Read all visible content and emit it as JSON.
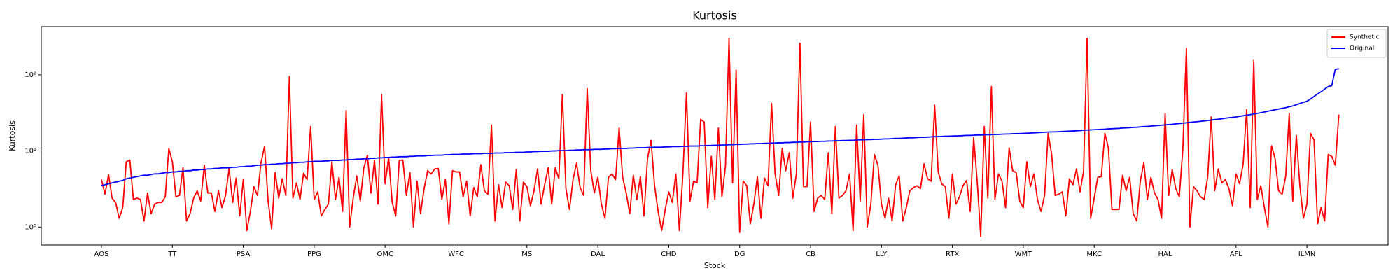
{
  "chart_data": {
    "type": "line",
    "title": "Kurtosis",
    "x_label": "Stock",
    "y_label": "Kurtosis",
    "log_scale_y": true,
    "legend": "upper right",
    "ylim": [
      0.58,
      430
    ],
    "yticks": [
      {
        "value": 1,
        "label": "10⁰"
      },
      {
        "value": 10,
        "label": "10¹"
      },
      {
        "value": 100,
        "label": "10²"
      }
    ],
    "categories": [
      "AOS",
      null,
      null,
      null,
      null,
      null,
      null,
      null,
      null,
      null,
      null,
      null,
      null,
      null,
      null,
      null,
      null,
      null,
      null,
      null,
      "TT",
      null,
      null,
      null,
      null,
      null,
      null,
      null,
      null,
      null,
      null,
      null,
      null,
      null,
      null,
      null,
      null,
      null,
      null,
      null,
      "PSA",
      null,
      null,
      null,
      null,
      null,
      null,
      null,
      null,
      null,
      null,
      null,
      null,
      null,
      null,
      null,
      null,
      null,
      null,
      null,
      "PPG",
      null,
      null,
      null,
      null,
      null,
      null,
      null,
      null,
      null,
      null,
      null,
      null,
      null,
      null,
      null,
      null,
      null,
      null,
      null,
      "OMC",
      null,
      null,
      null,
      null,
      null,
      null,
      null,
      null,
      null,
      null,
      null,
      null,
      null,
      null,
      null,
      null,
      null,
      null,
      null,
      "WFC",
      null,
      null,
      null,
      null,
      null,
      null,
      null,
      null,
      null,
      null,
      null,
      null,
      null,
      null,
      null,
      null,
      null,
      null,
      null,
      "MS",
      null,
      null,
      null,
      null,
      null,
      null,
      null,
      null,
      null,
      null,
      null,
      null,
      null,
      null,
      null,
      null,
      null,
      null,
      null,
      "DAL",
      null,
      null,
      null,
      null,
      null,
      null,
      null,
      null,
      null,
      null,
      null,
      null,
      null,
      null,
      null,
      null,
      null,
      null,
      null,
      "CHD",
      null,
      null,
      null,
      null,
      null,
      null,
      null,
      null,
      null,
      null,
      null,
      null,
      null,
      null,
      null,
      null,
      null,
      null,
      null,
      "DG",
      null,
      null,
      null,
      null,
      null,
      null,
      null,
      null,
      null,
      null,
      null,
      null,
      null,
      null,
      null,
      null,
      null,
      null,
      null,
      "CB",
      null,
      null,
      null,
      null,
      null,
      null,
      null,
      null,
      null,
      null,
      null,
      null,
      null,
      null,
      null,
      null,
      null,
      null,
      null,
      "LLY",
      null,
      null,
      null,
      null,
      null,
      null,
      null,
      null,
      null,
      null,
      null,
      null,
      null,
      null,
      null,
      null,
      null,
      null,
      null,
      "RTX",
      null,
      null,
      null,
      null,
      null,
      null,
      null,
      null,
      null,
      null,
      null,
      null,
      null,
      null,
      null,
      null,
      null,
      null,
      null,
      "WMT",
      null,
      null,
      null,
      null,
      null,
      null,
      null,
      null,
      null,
      null,
      null,
      null,
      null,
      null,
      null,
      null,
      null,
      null,
      null,
      "MKC",
      null,
      null,
      null,
      null,
      null,
      null,
      null,
      null,
      null,
      null,
      null,
      null,
      null,
      null,
      null,
      null,
      null,
      null,
      null,
      "HAL",
      null,
      null,
      null,
      null,
      null,
      null,
      null,
      null,
      null,
      null,
      null,
      null,
      null,
      null,
      null,
      null,
      null,
      null,
      null,
      "AFL",
      null,
      null,
      null,
      null,
      null,
      null,
      null,
      null,
      null,
      null,
      null,
      null,
      null,
      null,
      null,
      null,
      null,
      null,
      null,
      "ILMN",
      null,
      null,
      null,
      null,
      null,
      null,
      null,
      null,
      null
    ],
    "series": [
      {
        "name": "Synthetic",
        "color": "#ff0000",
        "values": [
          4.2,
          2.7,
          4.9,
          2.4,
          2.1,
          1.3,
          1.8,
          7.2,
          7.6,
          2.3,
          2.4,
          2.3,
          1.2,
          2.8,
          1.5,
          2.0,
          2.1,
          2.1,
          2.5,
          10.8,
          7.2,
          2.5,
          2.6,
          6.0,
          1.2,
          1.5,
          2.4,
          3.0,
          2.2,
          6.5,
          2.8,
          2.8,
          1.6,
          3.0,
          1.8,
          2.6,
          5.9,
          2.1,
          4.4,
          1.4,
          4.2,
          0.9,
          1.6,
          3.4,
          2.6,
          7.0,
          11.5,
          2.2,
          0.95,
          5.2,
          2.4,
          4.3,
          2.6,
          95,
          2.4,
          3.8,
          2.3,
          5.1,
          4.2,
          21,
          2.3,
          2.9,
          1.4,
          1.7,
          2.0,
          7.2,
          2.3,
          4.5,
          1.6,
          34,
          1.0,
          2.4,
          4.7,
          2.2,
          6.0,
          8.8,
          2.8,
          7.5,
          2.0,
          55,
          3.7,
          8.2,
          2.1,
          1.4,
          7.5,
          7.6,
          2.6,
          5.2,
          1.0,
          4.0,
          1.5,
          3.2,
          5.5,
          5.0,
          5.8,
          5.9,
          2.3,
          4.2,
          1.1,
          5.5,
          5.3,
          5.3,
          2.5,
          4.0,
          1.4,
          3.3,
          2.5,
          6.6,
          3.0,
          2.7,
          22,
          1.2,
          3.6,
          1.8,
          3.9,
          3.5,
          1.7,
          5.7,
          1.2,
          3.9,
          3.4,
          1.9,
          3.0,
          5.8,
          2.0,
          3.6,
          6.0,
          2.0,
          6.0,
          4.3,
          55,
          3.2,
          1.7,
          4.2,
          6.9,
          3.3,
          2.6,
          66,
          5.6,
          2.8,
          4.5,
          2.0,
          1.3,
          4.5,
          5.0,
          4.2,
          20,
          4.5,
          2.8,
          1.5,
          4.8,
          2.3,
          4.6,
          1.4,
          7.9,
          13.8,
          3.5,
          1.6,
          0.9,
          1.7,
          2.9,
          2.1,
          5.0,
          0.9,
          5.1,
          58,
          2.2,
          4.0,
          3.8,
          26,
          24,
          1.8,
          8.5,
          2.3,
          20,
          2.5,
          6.3,
          300,
          3.8,
          115,
          0.85,
          4.0,
          3.5,
          1.1,
          2.0,
          4.6,
          1.3,
          4.4,
          3.5,
          42,
          5.0,
          2.6,
          10.8,
          5.5,
          9.5,
          2.4,
          5.0,
          260,
          3.4,
          3.4,
          24,
          1.6,
          2.4,
          2.6,
          2.3,
          9.5,
          1.5,
          21,
          2.4,
          2.6,
          3.0,
          5.0,
          0.9,
          22,
          2.2,
          30,
          1.0,
          2.0,
          9.0,
          6.5,
          2.0,
          1.3,
          2.4,
          1.2,
          3.6,
          4.7,
          1.2,
          1.8,
          3.0,
          3.3,
          3.5,
          3.2,
          6.8,
          4.3,
          4.0,
          40,
          5.3,
          3.7,
          3.4,
          1.3,
          5.0,
          2.0,
          2.5,
          3.5,
          4.1,
          1.6,
          15,
          4.0,
          0.75,
          21,
          2.4,
          70,
          2.3,
          5.0,
          4.0,
          1.8,
          11,
          5.5,
          5.2,
          2.2,
          1.8,
          7.2,
          3.4,
          5.0,
          2.3,
          1.6,
          2.6,
          17,
          9.0,
          2.6,
          2.7,
          2.9,
          1.4,
          4.3,
          3.6,
          5.8,
          2.9,
          5.4,
          300,
          1.3,
          2.4,
          4.5,
          4.6,
          17,
          11,
          1.7,
          1.7,
          1.7,
          4.8,
          3.0,
          4.5,
          1.5,
          1.2,
          4.0,
          7.0,
          2.3,
          4.5,
          2.8,
          2.3,
          1.3,
          31,
          2.6,
          5.7,
          3.2,
          2.5,
          10.5,
          222,
          1.0,
          3.4,
          3.0,
          2.5,
          2.3,
          4.5,
          28,
          3.0,
          5.8,
          3.8,
          4.2,
          3.2,
          1.9,
          5.0,
          3.7,
          6.7,
          35,
          1.8,
          155,
          2.3,
          3.5,
          1.8,
          1.0,
          11.7,
          8.0,
          3.0,
          2.7,
          4.6,
          31,
          2.2,
          16,
          3.5,
          1.3,
          2.0,
          17,
          14,
          1.1,
          1.8,
          1.2,
          9.0,
          8.5,
          6.5,
          30
        ]
      },
      {
        "name": "Original",
        "color": "#0000ff",
        "values": [
          3.5,
          3.6,
          3.7,
          3.8,
          3.9,
          4.0,
          4.1,
          4.3,
          4.4,
          4.5,
          4.6,
          4.7,
          4.8,
          4.8,
          4.9,
          5.0,
          5.0,
          5.1,
          5.2,
          5.2,
          5.3,
          5.3,
          5.4,
          5.4,
          5.5,
          5.5,
          5.6,
          5.6,
          5.7,
          5.7,
          5.8,
          5.8,
          5.9,
          5.9,
          6.0,
          6.0,
          6.0,
          6.1,
          6.1,
          6.2,
          6.2,
          6.3,
          6.3,
          6.4,
          6.5,
          6.5,
          6.6,
          6.6,
          6.7,
          6.7,
          6.8,
          6.8,
          6.9,
          6.9,
          7.0,
          7.0,
          7.1,
          7.1,
          7.2,
          7.2,
          7.3,
          7.3,
          7.3,
          7.4,
          7.4,
          7.5,
          7.5,
          7.5,
          7.6,
          7.6,
          7.7,
          7.7,
          7.8,
          7.8,
          7.9,
          7.9,
          8.0,
          8.0,
          8.1,
          8.1,
          8.2,
          8.2,
          8.3,
          8.3,
          8.4,
          8.4,
          8.4,
          8.5,
          8.5,
          8.6,
          8.6,
          8.6,
          8.7,
          8.7,
          8.8,
          8.8,
          8.8,
          8.9,
          8.9,
          9.0,
          9.0,
          9.0,
          9.1,
          9.1,
          9.1,
          9.2,
          9.2,
          9.2,
          9.3,
          9.3,
          9.3,
          9.4,
          9.4,
          9.4,
          9.5,
          9.5,
          9.5,
          9.6,
          9.6,
          9.6,
          9.7,
          9.7,
          9.8,
          9.8,
          9.9,
          9.9,
          9.9,
          10.0,
          10.0,
          10.1,
          10.1,
          10.1,
          10.2,
          10.2,
          10.3,
          10.3,
          10.4,
          10.4,
          10.4,
          10.5,
          10.5,
          10.5,
          10.6,
          10.6,
          10.7,
          10.7,
          10.8,
          10.8,
          10.8,
          10.9,
          10.9,
          11.0,
          11.0,
          11.0,
          11.1,
          11.1,
          11.2,
          11.2,
          11.2,
          11.3,
          11.3,
          11.4,
          11.4,
          11.4,
          11.5,
          11.5,
          11.6,
          11.6,
          11.6,
          11.7,
          11.7,
          11.8,
          11.8,
          11.9,
          11.9,
          12.0,
          12.0,
          12.1,
          12.1,
          12.2,
          12.2,
          12.3,
          12.3,
          12.4,
          12.4,
          12.5,
          12.5,
          12.6,
          12.6,
          12.7,
          12.7,
          12.8,
          12.8,
          12.9,
          12.9,
          13.0,
          13.0,
          13.1,
          13.1,
          13.2,
          13.2,
          13.3,
          13.3,
          13.4,
          13.4,
          13.5,
          13.5,
          13.6,
          13.6,
          13.7,
          13.7,
          13.8,
          13.8,
          13.9,
          14.0,
          14.0,
          14.1,
          14.1,
          14.2,
          14.2,
          14.3,
          14.4,
          14.4,
          14.5,
          14.6,
          14.6,
          14.7,
          14.8,
          14.9,
          14.9,
          15.0,
          15.1,
          15.1,
          15.2,
          15.3,
          15.4,
          15.4,
          15.5,
          15.6,
          15.6,
          15.7,
          15.8,
          15.8,
          15.9,
          16.0,
          16.0,
          16.1,
          16.2,
          16.2,
          16.3,
          16.3,
          16.4,
          16.5,
          16.5,
          16.6,
          16.7,
          16.7,
          16.8,
          16.9,
          16.9,
          17.0,
          17.1,
          17.2,
          17.3,
          17.4,
          17.5,
          17.6,
          17.7,
          17.8,
          17.8,
          17.9,
          18.0,
          18.1,
          18.2,
          18.3,
          18.4,
          18.5,
          18.7,
          18.8,
          18.9,
          19.0,
          19.1,
          19.2,
          19.3,
          19.5,
          19.6,
          19.7,
          19.8,
          20.0,
          20.1,
          20.2,
          20.4,
          20.5,
          20.7,
          20.9,
          21.0,
          21.2,
          21.4,
          21.6,
          21.8,
          22.0,
          22.2,
          22.4,
          22.7,
          22.9,
          23.2,
          23.4,
          23.7,
          24.0,
          24.2,
          24.5,
          24.8,
          25.1,
          25.5,
          25.8,
          26.1,
          26.5,
          26.9,
          27.3,
          27.6,
          28.0,
          28.5,
          29.0,
          29.5,
          30.0,
          30.6,
          31.2,
          31.8,
          32.5,
          33.2,
          34.0,
          34.8,
          35.5,
          36.3,
          37.0,
          38.0,
          39.0,
          40.5,
          42.0,
          43.5,
          45,
          48,
          52,
          56,
          60,
          65,
          70,
          72,
          118,
          120
        ]
      }
    ]
  }
}
